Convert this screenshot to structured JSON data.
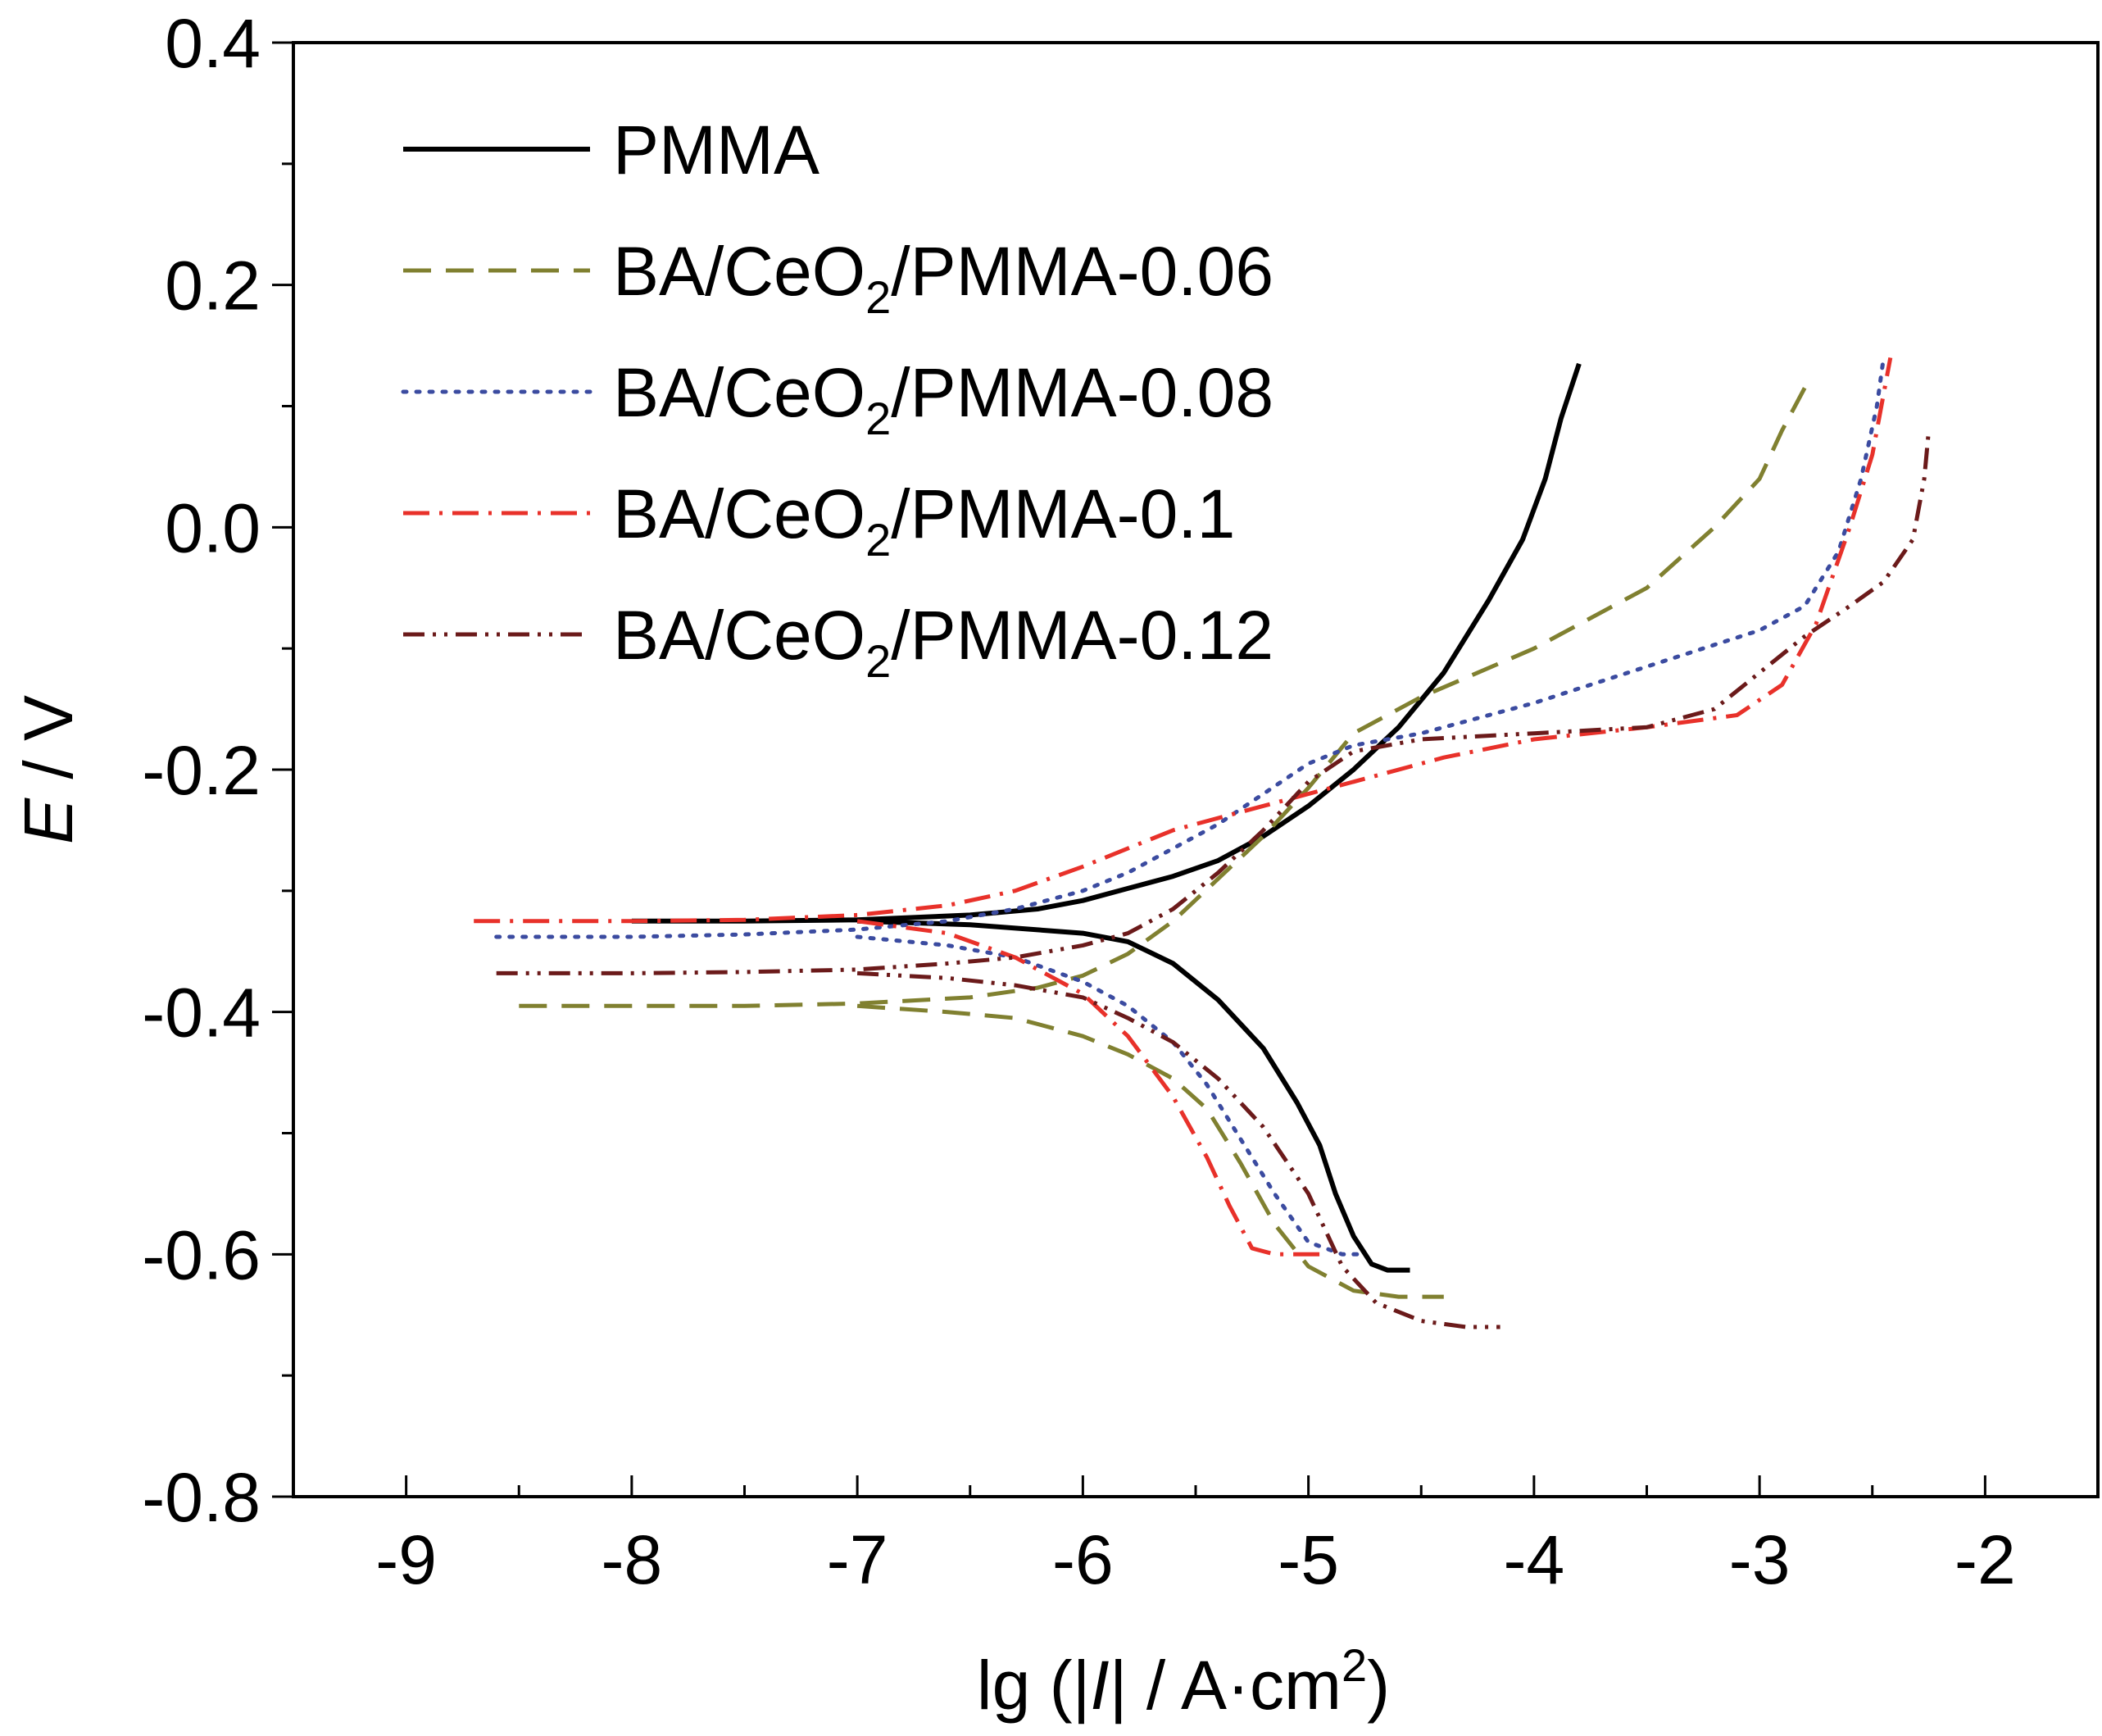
{
  "chart_data": {
    "type": "line",
    "xlabel": "lg (|I| / A·cm2)",
    "xlabel_parts": {
      "prefix": "lg (|",
      "italic": "I",
      "suffix": "| / A·cm",
      "sup": "2",
      "close": ")"
    },
    "ylabel": "E / V",
    "ylabel_parts": {
      "italic": "E",
      "rest": " / V"
    },
    "xlim": [
      -9.5,
      -1.5
    ],
    "ylim": [
      -0.8,
      0.4
    ],
    "x_ticks": [
      -9,
      -8,
      -7,
      -6,
      -5,
      -4,
      -3,
      -2
    ],
    "x_tick_labels": [
      "-9",
      "-8",
      "-7",
      "-6",
      "-5",
      "-4",
      "-3",
      "-2"
    ],
    "y_ticks": [
      -0.8,
      -0.6,
      -0.4,
      -0.2,
      0.0,
      0.2,
      0.4
    ],
    "y_tick_labels": [
      "-0.8",
      "-0.6",
      "-0.4",
      "-0.2",
      "0.0",
      "0.2",
      "0.4"
    ],
    "grid": false,
    "legend_position": "top-left",
    "series": [
      {
        "name": "PMMA",
        "label_parts": {
          "main": "PMMA",
          "sub": "",
          "tail": ""
        },
        "color": "#000000",
        "dash": "solid",
        "x": [
          -8.0,
          -7.5,
          -7.0,
          -6.5,
          -6.2,
          -6.0,
          -5.8,
          -5.6,
          -5.4,
          -5.2,
          -5.0,
          -4.8,
          -4.6,
          -4.4,
          -4.2,
          -4.05,
          -3.95,
          -3.88,
          -3.8,
          null,
          -7.0,
          -6.5,
          -6.0,
          -5.8,
          -5.6,
          -5.4,
          -5.2,
          -5.05,
          -4.95,
          -4.88,
          -4.8,
          -4.72,
          -4.65,
          -4.55
        ],
        "y": [
          -0.325,
          -0.325,
          -0.324,
          -0.32,
          -0.315,
          -0.308,
          -0.298,
          -0.288,
          -0.275,
          -0.255,
          -0.23,
          -0.2,
          -0.165,
          -0.12,
          -0.06,
          -0.01,
          0.04,
          0.09,
          0.135,
          null,
          -0.325,
          -0.328,
          -0.335,
          -0.342,
          -0.36,
          -0.39,
          -0.43,
          -0.475,
          -0.51,
          -0.55,
          -0.585,
          -0.608,
          -0.613,
          -0.613
        ]
      },
      {
        "name": "BA/CeO2/PMMA-0.06",
        "label_parts": {
          "main": "BA/CeO",
          "sub": "2",
          "tail": "/PMMA-0.06"
        },
        "color": "#808030",
        "dash": "long-dash",
        "x": [
          -8.5,
          -8.0,
          -7.5,
          -7.0,
          -6.5,
          -6.2,
          -6.0,
          -5.8,
          -5.6,
          -5.4,
          -5.2,
          -5.0,
          -4.8,
          -4.5,
          -4.0,
          -3.5,
          -3.2,
          -3.0,
          -2.9,
          -2.8,
          null,
          -7.0,
          -6.6,
          -6.3,
          -6.0,
          -5.8,
          -5.6,
          -5.45,
          -5.3,
          -5.15,
          -5.0,
          -4.8,
          -4.6,
          -4.4
        ],
        "y": [
          -0.395,
          -0.395,
          -0.395,
          -0.393,
          -0.388,
          -0.38,
          -0.37,
          -0.352,
          -0.325,
          -0.29,
          -0.255,
          -0.215,
          -0.17,
          -0.14,
          -0.1,
          -0.05,
          0.0,
          0.04,
          0.08,
          0.115,
          null,
          -0.395,
          -0.4,
          -0.405,
          -0.42,
          -0.435,
          -0.455,
          -0.48,
          -0.525,
          -0.575,
          -0.61,
          -0.63,
          -0.635,
          -0.635
        ]
      },
      {
        "name": "BA/CeO2/PMMA-0.08",
        "label_parts": {
          "main": "BA/CeO",
          "sub": "2",
          "tail": "/PMMA-0.08"
        },
        "color": "#3b4ba0",
        "dash": "dot",
        "x": [
          -8.6,
          -8.0,
          -7.5,
          -7.0,
          -6.6,
          -6.3,
          -6.0,
          -5.8,
          -5.6,
          -5.4,
          -5.2,
          -5.0,
          -4.8,
          -4.5,
          -4.0,
          -3.5,
          -3.0,
          -2.8,
          -2.65,
          -2.55,
          -2.48,
          -2.45,
          null,
          -7.0,
          -6.6,
          -6.3,
          -6.0,
          -5.8,
          -5.6,
          -5.45,
          -5.3,
          -5.15,
          -5.0,
          -4.85,
          -4.75
        ],
        "y": [
          -0.338,
          -0.338,
          -0.336,
          -0.332,
          -0.325,
          -0.315,
          -0.3,
          -0.285,
          -0.265,
          -0.245,
          -0.22,
          -0.195,
          -0.18,
          -0.17,
          -0.145,
          -0.115,
          -0.085,
          -0.065,
          -0.02,
          0.04,
          0.1,
          0.14,
          null,
          -0.338,
          -0.345,
          -0.355,
          -0.375,
          -0.395,
          -0.425,
          -0.46,
          -0.505,
          -0.55,
          -0.59,
          -0.6,
          -0.6
        ]
      },
      {
        "name": "BA/CeO2/PMMA-0.1",
        "label_parts": {
          "main": "BA/CeO",
          "sub": "2",
          "tail": "/PMMA-0.1"
        },
        "color": "#e8312a",
        "dash": "dash-dot",
        "x": [
          -8.7,
          -8.0,
          -7.5,
          -7.0,
          -6.6,
          -6.3,
          -6.0,
          -5.8,
          -5.6,
          -5.3,
          -5.0,
          -4.7,
          -4.4,
          -4.0,
          -3.5,
          -3.1,
          -2.9,
          -2.75,
          -2.6,
          -2.5,
          -2.45,
          -2.42,
          null,
          -7.0,
          -6.6,
          -6.3,
          -6.0,
          -5.8,
          -5.6,
          -5.45,
          -5.35,
          -5.25,
          -5.15,
          -4.95
        ],
        "y": [
          -0.325,
          -0.325,
          -0.324,
          -0.32,
          -0.312,
          -0.3,
          -0.28,
          -0.265,
          -0.25,
          -0.235,
          -0.22,
          -0.205,
          -0.19,
          -0.175,
          -0.165,
          -0.155,
          -0.13,
          -0.08,
          0.0,
          0.06,
          0.11,
          0.14,
          null,
          -0.325,
          -0.335,
          -0.355,
          -0.385,
          -0.42,
          -0.47,
          -0.52,
          -0.56,
          -0.595,
          -0.6,
          -0.6
        ]
      },
      {
        "name": "BA/CeO2/PMMA-0.12",
        "label_parts": {
          "main": "BA/CeO",
          "sub": "2",
          "tail": "/PMMA-0.12"
        },
        "color": "#6b1a1a",
        "dash": "dash-dot-dot",
        "x": [
          -8.6,
          -8.0,
          -7.5,
          -7.0,
          -6.6,
          -6.3,
          -6.0,
          -5.8,
          -5.6,
          -5.4,
          -5.2,
          -5.0,
          -4.8,
          -4.5,
          -4.0,
          -3.5,
          -3.2,
          -3.0,
          -2.8,
          -2.6,
          -2.45,
          -2.32,
          -2.27,
          -2.25,
          null,
          -7.0,
          -6.6,
          -6.3,
          -6.0,
          -5.8,
          -5.6,
          -5.4,
          -5.2,
          -5.0,
          -4.85,
          -4.7,
          -4.5,
          -4.3,
          -4.15
        ],
        "y": [
          -0.368,
          -0.368,
          -0.367,
          -0.365,
          -0.36,
          -0.355,
          -0.345,
          -0.335,
          -0.315,
          -0.285,
          -0.25,
          -0.21,
          -0.185,
          -0.175,
          -0.17,
          -0.165,
          -0.15,
          -0.12,
          -0.09,
          -0.065,
          -0.045,
          -0.01,
          0.04,
          0.08,
          null,
          -0.368,
          -0.372,
          -0.378,
          -0.388,
          -0.405,
          -0.425,
          -0.455,
          -0.495,
          -0.55,
          -0.61,
          -0.64,
          -0.655,
          -0.66,
          -0.66
        ]
      }
    ]
  }
}
